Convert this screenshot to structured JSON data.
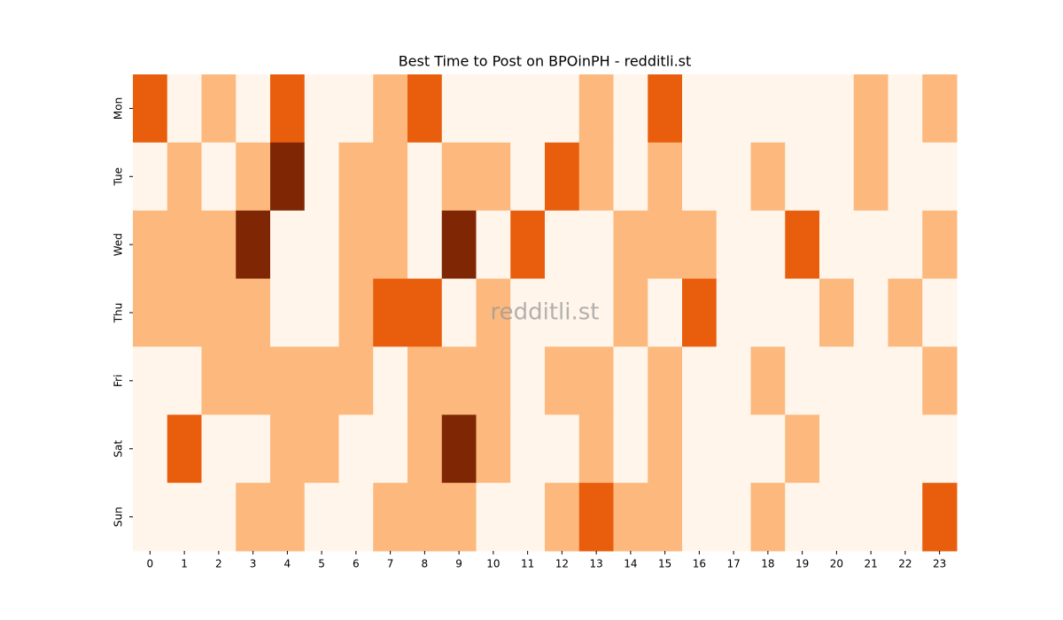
{
  "chart_data": {
    "type": "heatmap",
    "title": "Best Time to Post on BPOinPH - redditli.st",
    "annotation": "redditli.st",
    "x_categories": [
      0,
      1,
      2,
      3,
      4,
      5,
      6,
      7,
      8,
      9,
      10,
      11,
      12,
      13,
      14,
      15,
      16,
      17,
      18,
      19,
      20,
      21,
      22,
      23
    ],
    "y_categories": [
      "Mon",
      "Tue",
      "Wed",
      "Thu",
      "Fri",
      "Sat",
      "Sun"
    ],
    "colors": [
      "#fff5eb",
      "#fdb97d",
      "#e95e0d",
      "#7f2704"
    ],
    "values": [
      [
        2,
        0,
        1,
        0,
        2,
        0,
        0,
        1,
        2,
        0,
        0,
        0,
        0,
        1,
        0,
        2,
        0,
        0,
        0,
        0,
        0,
        1,
        0,
        1
      ],
      [
        0,
        1,
        0,
        1,
        3,
        0,
        1,
        1,
        0,
        1,
        1,
        0,
        2,
        1,
        0,
        1,
        0,
        0,
        1,
        0,
        0,
        1,
        0,
        0
      ],
      [
        1,
        1,
        1,
        3,
        0,
        0,
        1,
        1,
        0,
        3,
        0,
        2,
        0,
        0,
        1,
        1,
        1,
        0,
        0,
        2,
        0,
        0,
        0,
        1
      ],
      [
        1,
        1,
        1,
        1,
        0,
        0,
        1,
        2,
        2,
        0,
        1,
        0,
        0,
        0,
        1,
        0,
        2,
        0,
        0,
        0,
        1,
        0,
        1,
        0
      ],
      [
        0,
        0,
        1,
        1,
        1,
        1,
        1,
        0,
        1,
        1,
        1,
        0,
        1,
        1,
        0,
        1,
        0,
        0,
        1,
        0,
        0,
        0,
        0,
        1
      ],
      [
        0,
        2,
        0,
        0,
        1,
        1,
        0,
        0,
        1,
        3,
        1,
        0,
        0,
        1,
        0,
        1,
        0,
        0,
        0,
        1,
        0,
        0,
        0,
        0
      ],
      [
        0,
        0,
        0,
        1,
        1,
        0,
        0,
        1,
        1,
        1,
        0,
        0,
        1,
        2,
        1,
        1,
        0,
        0,
        1,
        0,
        0,
        0,
        0,
        2
      ]
    ]
  }
}
